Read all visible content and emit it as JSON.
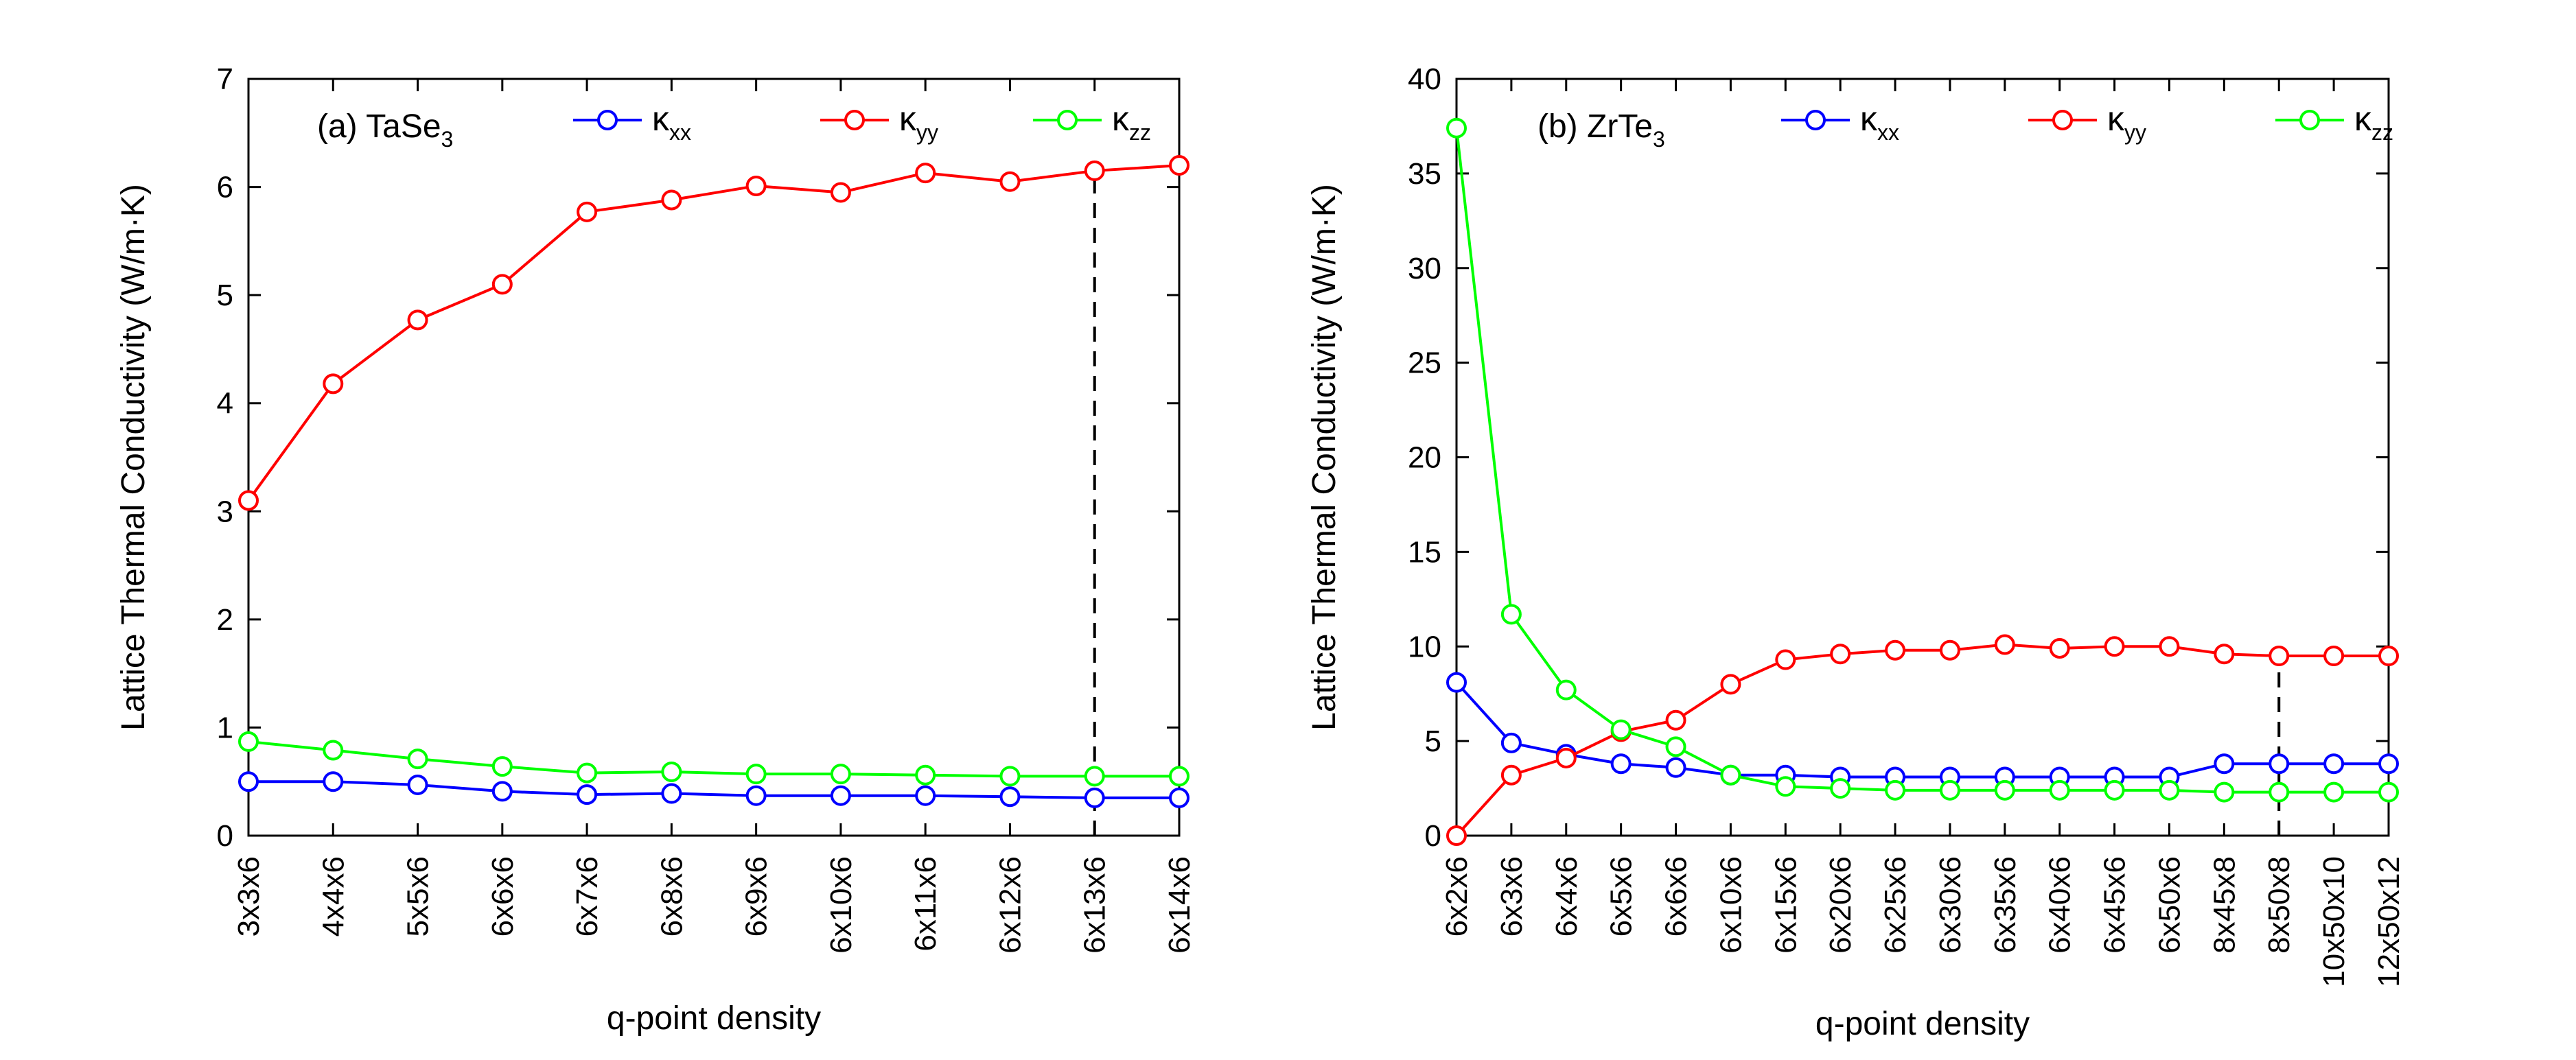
{
  "chart_data": [
    {
      "type": "line",
      "panel_label": "(a) TaSe",
      "panel_label_sub": "3",
      "xlabel": "q-point density",
      "ylabel": "Lattice Thermal Conductivity (W/m·K)",
      "ylim": [
        0,
        7
      ],
      "yticks": [
        0,
        1,
        2,
        3,
        4,
        5,
        6,
        7
      ],
      "categories": [
        "3x3x6",
        "4x4x6",
        "5x5x6",
        "6x6x6",
        "6x7x6",
        "6x8x6",
        "6x9x6",
        "6x10x6",
        "6x11x6",
        "6x12x6",
        "6x13x6",
        "6x14x6"
      ],
      "series": [
        {
          "name": "κ",
          "sub": "xx",
          "color": "#0000ff",
          "values": [
            0.5,
            0.5,
            0.47,
            0.41,
            0.38,
            0.39,
            0.37,
            0.37,
            0.37,
            0.36,
            0.35,
            0.35
          ]
        },
        {
          "name": "κ",
          "sub": "yy",
          "color": "#ff0000",
          "values": [
            3.1,
            4.18,
            4.77,
            5.1,
            5.77,
            5.88,
            6.01,
            5.95,
            6.13,
            6.05,
            6.15,
            6.2
          ]
        },
        {
          "name": "κ",
          "sub": "zz",
          "color": "#00ff00",
          "values": [
            0.87,
            0.79,
            0.71,
            0.64,
            0.58,
            0.59,
            0.57,
            0.57,
            0.56,
            0.55,
            0.55,
            0.55
          ]
        }
      ],
      "marker_line": {
        "category": "6x13x6",
        "y_to": 6.15
      },
      "legend_position": "top"
    },
    {
      "type": "line",
      "panel_label": "(b) ZrTe",
      "panel_label_sub": "3",
      "xlabel": "q-point density",
      "ylabel": "Lattice Thermal Conductivity (W/m·K)",
      "ylim": [
        0,
        40
      ],
      "yticks": [
        0,
        5,
        10,
        15,
        20,
        25,
        30,
        35,
        40
      ],
      "categories": [
        "6x2x6",
        "6x3x6",
        "6x4x6",
        "6x5x6",
        "6x6x6",
        "6x10x6",
        "6x15x6",
        "6x20x6",
        "6x25x6",
        "6x30x6",
        "6x35x6",
        "6x40x6",
        "6x45x6",
        "6x50x6",
        "8x45x8",
        "8x50x8",
        "10x50x10",
        "12x50x12"
      ],
      "series": [
        {
          "name": "κ",
          "sub": "xx",
          "color": "#0000ff",
          "values": [
            8.1,
            4.9,
            4.3,
            3.8,
            3.6,
            3.2,
            3.2,
            3.1,
            3.1,
            3.1,
            3.1,
            3.1,
            3.1,
            3.1,
            3.8,
            3.8,
            3.8,
            3.8
          ]
        },
        {
          "name": "κ",
          "sub": "yy",
          "color": "#ff0000",
          "values": [
            0.0,
            3.2,
            4.1,
            5.5,
            6.1,
            8.0,
            9.3,
            9.6,
            9.8,
            9.8,
            10.1,
            9.9,
            10.0,
            10.0,
            9.6,
            9.5,
            9.5,
            9.5
          ]
        },
        {
          "name": "κ",
          "sub": "zz",
          "color": "#00ff00",
          "values": [
            37.4,
            11.7,
            7.7,
            5.6,
            4.7,
            3.2,
            2.6,
            2.5,
            2.4,
            2.4,
            2.4,
            2.4,
            2.4,
            2.4,
            2.3,
            2.3,
            2.3,
            2.3
          ]
        }
      ],
      "marker_line": {
        "category": "8x50x8",
        "y_to": 9.5
      },
      "legend_position": "top"
    }
  ]
}
